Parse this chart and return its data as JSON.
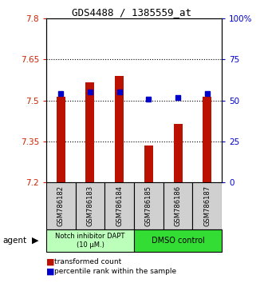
{
  "title": "GDS4488 / 1385559_at",
  "samples": [
    "GSM786182",
    "GSM786183",
    "GSM786184",
    "GSM786185",
    "GSM786186",
    "GSM786187"
  ],
  "bar_values": [
    7.515,
    7.565,
    7.59,
    7.335,
    7.415,
    7.515
  ],
  "percentile_values": [
    54,
    55,
    55,
    51,
    52,
    54
  ],
  "bar_bottom": 7.2,
  "ylim_left": [
    7.2,
    7.8
  ],
  "ylim_right": [
    0,
    100
  ],
  "yticks_left": [
    7.2,
    7.35,
    7.5,
    7.65,
    7.8
  ],
  "ytick_labels_left": [
    "7.2",
    "7.35",
    "7.5",
    "7.65",
    "7.8"
  ],
  "yticks_right": [
    0,
    25,
    50,
    75,
    100
  ],
  "ytick_labels_right": [
    "0",
    "25",
    "50",
    "75",
    "100%"
  ],
  "bar_color": "#bb1100",
  "percentile_color": "#0000cc",
  "group1_label": "Notch inhibitor DAPT\n(10 μM.)",
  "group2_label": "DMSO control",
  "group1_color": "#bbffbb",
  "group2_color": "#33dd33",
  "group1_indices": [
    0,
    1,
    2
  ],
  "group2_indices": [
    3,
    4,
    5
  ],
  "agent_label": "agent",
  "legend_bar_label": "transformed count",
  "legend_pct_label": "percentile rank within the sample",
  "background_color": "#ffffff",
  "gridline_color": "#000000",
  "bar_width": 0.3
}
